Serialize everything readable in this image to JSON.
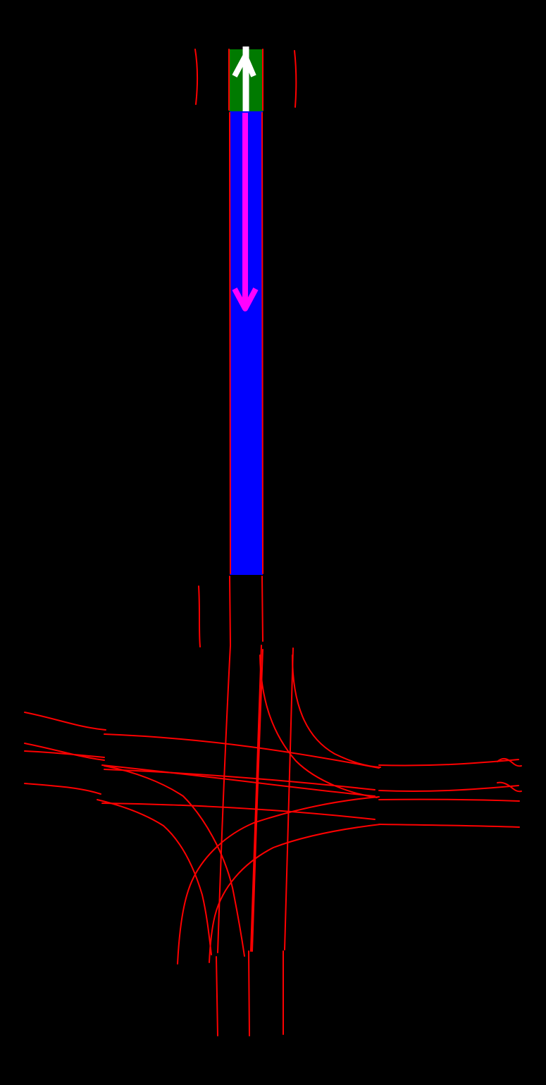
{
  "map": {
    "background_color": "#000000",
    "lane_line_color": "#ff0000",
    "target_lane_color": "#0000ff",
    "start_lane_color": "#007a00",
    "ego_arrow_color": "#ffffff",
    "route_arrow_color": "#ff00ff",
    "ego_arrow_icon": "up-arrow-icon",
    "route_arrow_icon": "down-arrow-icon"
  }
}
